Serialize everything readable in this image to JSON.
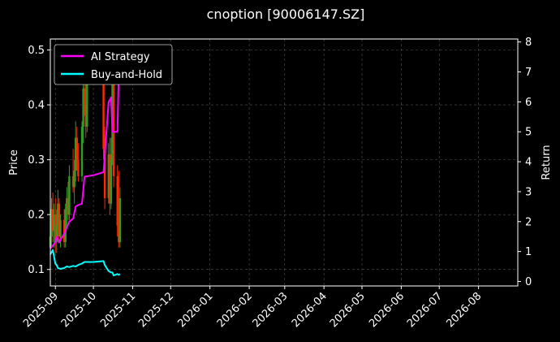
{
  "chart_data": {
    "type": "line",
    "title": "cnoption [90006147.SZ]",
    "xlabel": "",
    "ylabel": "Price",
    "y2label": "Return",
    "x_ticks": [
      "2025-09",
      "2025-10",
      "2025-11",
      "2025-12",
      "2026-01",
      "2026-02",
      "2026-03",
      "2026-04",
      "2026-05",
      "2026-06",
      "2026-07",
      "2026-08"
    ],
    "xlim": [
      "2025-08-28",
      "2026-09-01"
    ],
    "ylim": [
      0.07,
      0.52
    ],
    "y_ticks": [
      0.1,
      0.2,
      0.3,
      0.4,
      0.5
    ],
    "y2lim": [
      -0.15,
      8.1
    ],
    "y2_ticks": [
      0,
      1,
      2,
      3,
      4,
      5,
      6,
      7,
      8
    ],
    "grid": true,
    "legend_position": "top-left",
    "colors": {
      "background": "#000000",
      "ai_strategy": "#ff00ff",
      "buy_and_hold": "#00ffff",
      "candle_up": "#2aa02a",
      "candle_down": "#ff2a00",
      "grid": "#555555"
    },
    "candles": [
      {
        "date": "2025-08-28",
        "open": 0.14,
        "high": 0.25,
        "low": 0.13,
        "close": 0.16
      },
      {
        "date": "2025-08-29",
        "open": 0.16,
        "high": 0.23,
        "low": 0.14,
        "close": 0.21
      },
      {
        "date": "2025-08-30",
        "open": 0.21,
        "high": 0.24,
        "low": 0.15,
        "close": 0.17
      },
      {
        "date": "2025-08-31",
        "open": 0.17,
        "high": 0.22,
        "low": 0.14,
        "close": 0.2
      },
      {
        "date": "2025-09-01",
        "open": 0.2,
        "high": 0.23,
        "low": 0.13,
        "close": 0.15
      },
      {
        "date": "2025-09-02",
        "open": 0.15,
        "high": 0.21,
        "low": 0.13,
        "close": 0.18
      },
      {
        "date": "2025-09-03",
        "open": 0.18,
        "high": 0.245,
        "low": 0.16,
        "close": 0.22
      },
      {
        "date": "2025-09-04",
        "open": 0.22,
        "high": 0.23,
        "low": 0.15,
        "close": 0.16
      },
      {
        "date": "2025-09-05",
        "open": 0.16,
        "high": 0.2,
        "low": 0.14,
        "close": 0.19
      },
      {
        "date": "2025-09-08",
        "open": 0.19,
        "high": 0.21,
        "low": 0.14,
        "close": 0.15
      },
      {
        "date": "2025-09-09",
        "open": 0.15,
        "high": 0.22,
        "low": 0.14,
        "close": 0.21
      },
      {
        "date": "2025-09-10",
        "open": 0.21,
        "high": 0.25,
        "low": 0.18,
        "close": 0.23
      },
      {
        "date": "2025-09-11",
        "open": 0.23,
        "high": 0.26,
        "low": 0.19,
        "close": 0.2
      },
      {
        "date": "2025-09-12",
        "open": 0.2,
        "high": 0.29,
        "low": 0.19,
        "close": 0.27
      },
      {
        "date": "2025-09-15",
        "open": 0.27,
        "high": 0.32,
        "low": 0.24,
        "close": 0.25
      },
      {
        "date": "2025-09-16",
        "open": 0.25,
        "high": 0.3,
        "low": 0.22,
        "close": 0.28
      },
      {
        "date": "2025-09-17",
        "open": 0.28,
        "high": 0.37,
        "low": 0.26,
        "close": 0.34
      },
      {
        "date": "2025-09-18",
        "open": 0.34,
        "high": 0.36,
        "low": 0.28,
        "close": 0.3
      },
      {
        "date": "2025-09-19",
        "open": 0.3,
        "high": 0.33,
        "low": 0.26,
        "close": 0.27
      },
      {
        "date": "2025-09-22",
        "open": 0.27,
        "high": 0.37,
        "low": 0.26,
        "close": 0.36
      },
      {
        "date": "2025-09-23",
        "open": 0.36,
        "high": 0.45,
        "low": 0.33,
        "close": 0.43
      },
      {
        "date": "2025-09-24",
        "open": 0.43,
        "high": 0.47,
        "low": 0.38,
        "close": 0.4
      },
      {
        "date": "2025-09-25",
        "open": 0.4,
        "high": 0.45,
        "low": 0.34,
        "close": 0.36
      },
      {
        "date": "2025-09-26",
        "open": 0.36,
        "high": 0.46,
        "low": 0.35,
        "close": 0.44
      },
      {
        "date": "2025-10-09",
        "open": 0.44,
        "high": 0.48,
        "low": 0.3,
        "close": 0.32
      },
      {
        "date": "2025-10-10",
        "open": 0.32,
        "high": 0.36,
        "low": 0.21,
        "close": 0.23
      },
      {
        "date": "2025-10-13",
        "open": 0.23,
        "high": 0.33,
        "low": 0.22,
        "close": 0.31
      },
      {
        "date": "2025-10-14",
        "open": 0.31,
        "high": 0.34,
        "low": 0.2,
        "close": 0.22
      },
      {
        "date": "2025-10-15",
        "open": 0.22,
        "high": 0.34,
        "low": 0.21,
        "close": 0.3
      },
      {
        "date": "2025-10-16",
        "open": 0.3,
        "high": 0.48,
        "low": 0.29,
        "close": 0.44
      },
      {
        "date": "2025-10-17",
        "open": 0.44,
        "high": 0.47,
        "low": 0.25,
        "close": 0.27
      },
      {
        "date": "2025-10-20",
        "open": 0.27,
        "high": 0.29,
        "low": 0.16,
        "close": 0.18
      },
      {
        "date": "2025-10-21",
        "open": 0.18,
        "high": 0.28,
        "low": 0.14,
        "close": 0.15
      },
      {
        "date": "2025-10-22",
        "open": 0.15,
        "high": 0.25,
        "low": 0.14,
        "close": 0.23
      }
    ],
    "series": [
      {
        "name": "AI Strategy",
        "axis": "right",
        "x": [
          "2025-08-28",
          "2025-08-30",
          "2025-09-01",
          "2025-09-02",
          "2025-09-03",
          "2025-09-04",
          "2025-09-05",
          "2025-09-08",
          "2025-09-10",
          "2025-09-12",
          "2025-09-15",
          "2025-09-17",
          "2025-09-19",
          "2025-09-22",
          "2025-09-24",
          "2025-10-01",
          "2025-10-09",
          "2025-10-13",
          "2025-10-15",
          "2025-10-16",
          "2025-10-17",
          "2025-10-20",
          "2025-10-21",
          "2025-10-22"
        ],
        "values": [
          1.1,
          1.2,
          1.3,
          1.5,
          1.4,
          1.3,
          1.4,
          1.6,
          1.8,
          2.0,
          2.1,
          2.5,
          2.55,
          2.6,
          3.5,
          3.55,
          3.65,
          6.0,
          6.15,
          5.0,
          5.0,
          5.0,
          7.0,
          7.2
        ]
      },
      {
        "name": "Buy-and-Hold",
        "axis": "right",
        "x": [
          "2025-08-28",
          "2025-08-30",
          "2025-09-01",
          "2025-09-02",
          "2025-09-03",
          "2025-09-05",
          "2025-09-08",
          "2025-09-10",
          "2025-09-12",
          "2025-09-15",
          "2025-09-17",
          "2025-09-19",
          "2025-09-22",
          "2025-09-24",
          "2025-10-01",
          "2025-10-09",
          "2025-10-10",
          "2025-10-13",
          "2025-10-15",
          "2025-10-16",
          "2025-10-17",
          "2025-10-20",
          "2025-10-21",
          "2025-10-22"
        ],
        "values": [
          0.9,
          1.05,
          0.6,
          0.55,
          0.45,
          0.42,
          0.45,
          0.5,
          0.48,
          0.52,
          0.5,
          0.55,
          0.6,
          0.65,
          0.65,
          0.68,
          0.55,
          0.35,
          0.3,
          0.3,
          0.2,
          0.25,
          0.22,
          0.25
        ]
      }
    ]
  }
}
